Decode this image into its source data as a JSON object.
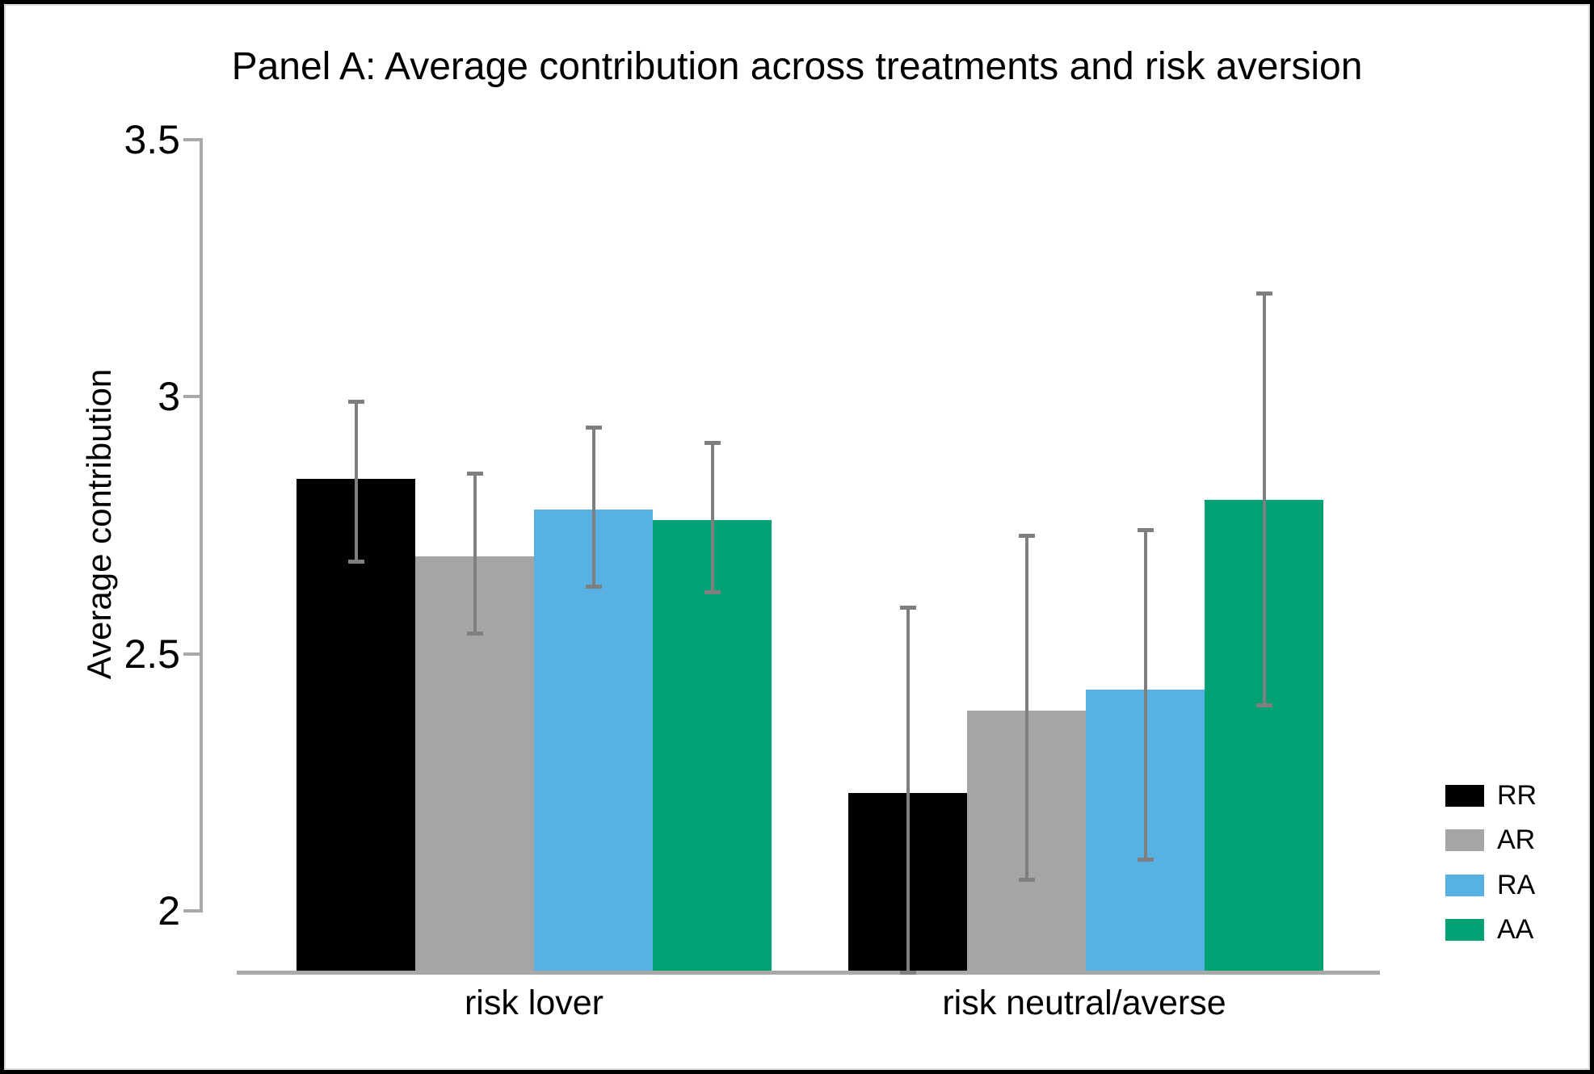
{
  "figure": {
    "background": "#FFFFFF",
    "border_color": "#000000"
  },
  "chart_data": {
    "type": "bar",
    "title": "Panel A: Average contribution across treatments and risk aversion",
    "ylabel": "Average contribution",
    "xlabel": "",
    "categories": [
      "risk lover",
      "risk neutral/averse"
    ],
    "series": [
      {
        "name": "RR",
        "color": "#000000",
        "values": [
          2.84,
          2.23
        ],
        "ci_low": [
          2.68,
          1.88
        ],
        "ci_high": [
          2.99,
          2.59
        ]
      },
      {
        "name": "AR",
        "color": "#A5A5A5",
        "values": [
          2.69,
          2.39
        ],
        "ci_low": [
          2.54,
          2.06
        ],
        "ci_high": [
          2.85,
          2.73
        ]
      },
      {
        "name": "RA",
        "color": "#57B1E3",
        "values": [
          2.78,
          2.43
        ],
        "ci_low": [
          2.63,
          2.1
        ],
        "ci_high": [
          2.94,
          2.74
        ]
      },
      {
        "name": "AA",
        "color": "#00A173",
        "values": [
          2.76,
          2.8
        ],
        "ci_low": [
          2.62,
          2.4
        ],
        "ci_high": [
          2.91,
          3.2
        ]
      }
    ],
    "y_ticks": [
      3.5,
      3,
      2.5,
      2
    ],
    "ylim": [
      1.88,
      3.5
    ],
    "grid": false,
    "error_bars": true,
    "error_bar_color": "#7F7F7F",
    "axis_color": "#A9A9A9",
    "legend_position": "right",
    "legend_labels": [
      "RR",
      "AR",
      "RA",
      "AA"
    ]
  }
}
